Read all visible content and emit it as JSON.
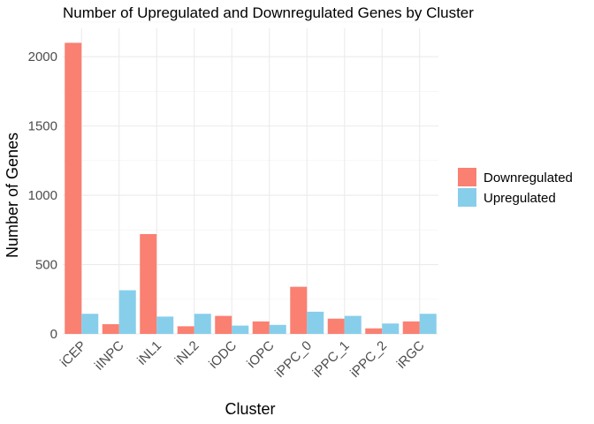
{
  "chart_data": {
    "type": "bar",
    "title": "Number of Upregulated and Downregulated Genes by Cluster",
    "xlabel": "Cluster",
    "ylabel": "Number of Genes",
    "categories": [
      "iCEP",
      "iINPC",
      "iNL1",
      "iNL2",
      "iODC",
      "iOPC",
      "iPPC_0",
      "iPPC_1",
      "iPPC_2",
      "iRGC"
    ],
    "series": [
      {
        "name": "Downregulated",
        "color": "#fa8072",
        "values": [
          2100,
          70,
          720,
          55,
          130,
          90,
          340,
          110,
          40,
          90
        ]
      },
      {
        "name": "Upregulated",
        "color": "#87ceeb",
        "values": [
          145,
          315,
          125,
          145,
          60,
          65,
          160,
          130,
          75,
          145
        ]
      }
    ],
    "yticks": [
      0,
      500,
      1000,
      1500,
      2000
    ],
    "ylim": [
      0,
      2205
    ],
    "grid": true,
    "legend_position": "right"
  }
}
